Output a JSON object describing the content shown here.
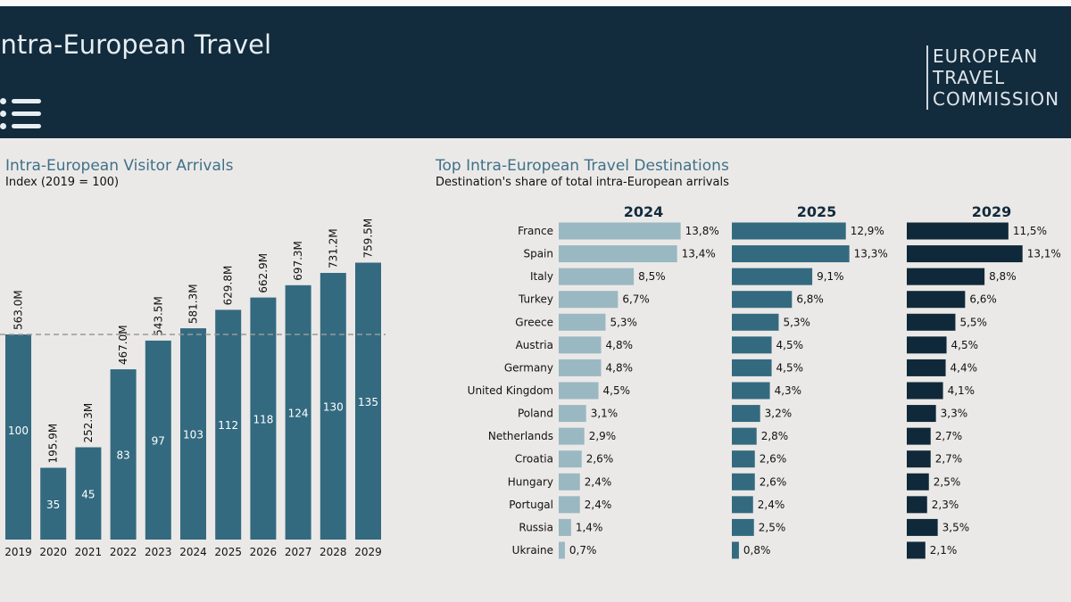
{
  "header": {
    "title": "Intra-European Travel",
    "menu_icon": "list-icon",
    "logo": {
      "line1": "EUROPEAN",
      "line2": "TRAVEL",
      "line3": "COMMISSION"
    }
  },
  "colors": {
    "header": "#122b3d",
    "bar": "#336a80",
    "y2024": "#9ab8c2",
    "y2025": "#336a80",
    "y2029": "#10293a"
  },
  "chart_data": [
    {
      "type": "bar",
      "title": "Intra-European Visitor Arrivals",
      "subtitle": "Index (2019 = 100)",
      "categories": [
        "2019",
        "2020",
        "2021",
        "2022",
        "2023",
        "2024",
        "2025",
        "2026",
        "2027",
        "2028",
        "2029"
      ],
      "values": [
        100,
        35,
        45,
        83,
        97,
        103,
        112,
        118,
        124,
        130,
        135
      ],
      "arrivals_labels": [
        "563.0M",
        "195.9M",
        "252.3M",
        "467.0M",
        "543.5M",
        "581.3M",
        "629.8M",
        "662.9M",
        "697.3M",
        "731.2M",
        "759.5M"
      ],
      "reference_line": 100,
      "ylim": [
        0,
        140
      ],
      "grid": false
    },
    {
      "type": "bar",
      "orientation": "horizontal",
      "title": "Top Intra-European Travel Destinations",
      "subtitle": "Destination's share of total intra-European arrivals",
      "categories": [
        "France",
        "Spain",
        "Italy",
        "Turkey",
        "Greece",
        "Austria",
        "Germany",
        "United Kingdom",
        "Poland",
        "Netherlands",
        "Croatia",
        "Hungary",
        "Portugal",
        "Russia",
        "Ukraine"
      ],
      "series": [
        {
          "name": "2024",
          "values": [
            13.8,
            13.4,
            8.5,
            6.7,
            5.3,
            4.8,
            4.8,
            4.5,
            3.1,
            2.9,
            2.6,
            2.4,
            2.4,
            1.4,
            0.7
          ],
          "labels": [
            "13,8%",
            "13,4%",
            "8,5%",
            "6,7%",
            "5,3%",
            "4,8%",
            "4,8%",
            "4,5%",
            "3,1%",
            "2,9%",
            "2,6%",
            "2,4%",
            "2,4%",
            "1,4%",
            "0,7%"
          ]
        },
        {
          "name": "2025",
          "values": [
            12.9,
            13.3,
            9.1,
            6.8,
            5.3,
            4.5,
            4.5,
            4.3,
            3.2,
            2.8,
            2.6,
            2.6,
            2.4,
            2.5,
            0.8
          ],
          "labels": [
            "12,9%",
            "13,3%",
            "9,1%",
            "6,8%",
            "5,3%",
            "4,5%",
            "4,5%",
            "4,3%",
            "3,2%",
            "2,8%",
            "2,6%",
            "2,6%",
            "2,4%",
            "2,5%",
            "0,8%"
          ]
        },
        {
          "name": "2029",
          "values": [
            11.5,
            13.1,
            8.8,
            6.6,
            5.5,
            4.5,
            4.4,
            4.1,
            3.3,
            2.7,
            2.7,
            2.5,
            2.3,
            3.5,
            2.1
          ],
          "labels": [
            "11,5%",
            "13,1%",
            "8,8%",
            "6,6%",
            "5,5%",
            "4,5%",
            "4,4%",
            "4,1%",
            "3,3%",
            "2,7%",
            "2,7%",
            "2,5%",
            "2,3%",
            "3,5%",
            "2,1%"
          ]
        }
      ],
      "unit": "%"
    }
  ]
}
